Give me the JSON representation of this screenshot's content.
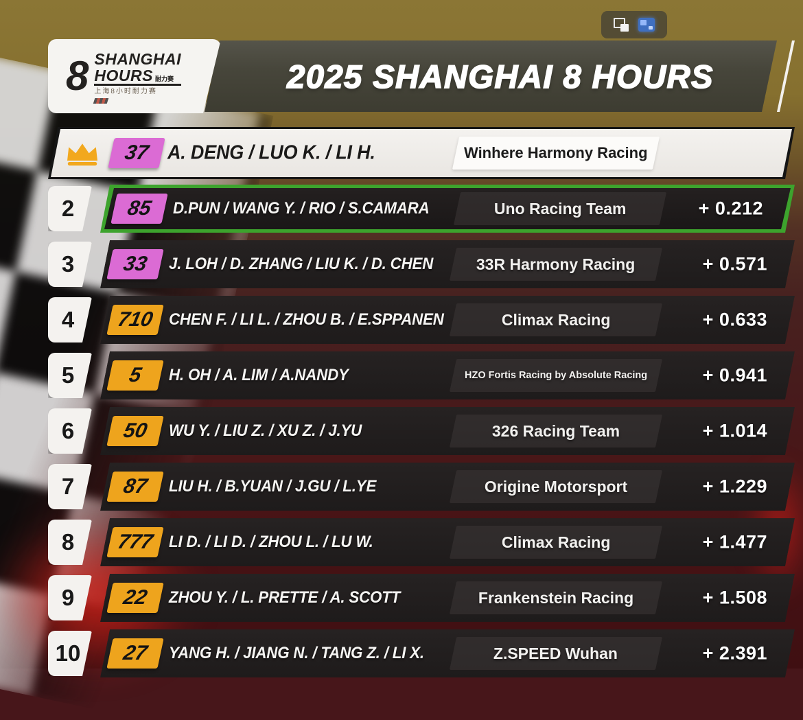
{
  "player_controls": {
    "pip_icon": "picture-in-picture",
    "cast_icon": "cast-display"
  },
  "header": {
    "logo": {
      "numeral": "8",
      "name_line1": "SHANGHAI",
      "name_line2": "HOURS",
      "inline_cjk": "耐力赛",
      "sub_cjk": "上海8小时耐力赛"
    },
    "title": "2025 SHANGHAI 8 HOURS"
  },
  "colors": {
    "highlight_green": "#3da32d",
    "badge_magenta": "#db6bd4",
    "badge_amber": "#eea41d",
    "crown_gold": "#f2a81d",
    "banner_olive": "#47463b"
  },
  "leaderboard": {
    "rows": [
      {
        "position": "1",
        "is_leader": true,
        "car_number": "37",
        "badge": "magenta",
        "drivers": "A. DENG / LUO K. / LI H.",
        "team": "Winhere Harmony Racing",
        "gap": "",
        "highlighted": false,
        "team_small": false
      },
      {
        "position": "2",
        "is_leader": false,
        "car_number": "85",
        "badge": "magenta",
        "drivers": "D.PUN / WANG Y. / RIO /  S.CAMARA",
        "team": "Uno Racing Team",
        "gap": "+ 0.212",
        "highlighted": true,
        "team_small": false
      },
      {
        "position": "3",
        "is_leader": false,
        "car_number": "33",
        "badge": "magenta",
        "drivers": "J. LOH / D. ZHANG / LIU K. / D. CHEN",
        "team": "33R Harmony Racing",
        "gap": "+ 0.571",
        "highlighted": false,
        "team_small": false
      },
      {
        "position": "4",
        "is_leader": false,
        "car_number": "710",
        "badge": "amber",
        "drivers": "CHEN F. / LI L. / ZHOU B. / E.SPPANEN",
        "team": "Climax Racing",
        "gap": "+ 0.633",
        "highlighted": false,
        "team_small": false
      },
      {
        "position": "5",
        "is_leader": false,
        "car_number": "5",
        "badge": "amber",
        "drivers": "H. OH / A. LIM / A.NANDY",
        "team": "HZO Fortis Racing by Absolute Racing",
        "gap": "+ 0.941",
        "highlighted": false,
        "team_small": true
      },
      {
        "position": "6",
        "is_leader": false,
        "car_number": "50",
        "badge": "amber",
        "drivers": "WU Y. / LIU Z. / XU Z. / J.YU",
        "team": "326 Racing Team",
        "gap": "+ 1.014",
        "highlighted": false,
        "team_small": false
      },
      {
        "position": "7",
        "is_leader": false,
        "car_number": "87",
        "badge": "amber",
        "drivers": "LIU H. / B.YUAN / J.GU /  L.YE",
        "team": "Origine Motorsport",
        "gap": "+ 1.229",
        "highlighted": false,
        "team_small": false
      },
      {
        "position": "8",
        "is_leader": false,
        "car_number": "777",
        "badge": "amber",
        "drivers": "LI D. / LI D. / ZHOU L. / LU W.",
        "team": "Climax Racing",
        "gap": "+ 1.477",
        "highlighted": false,
        "team_small": false
      },
      {
        "position": "9",
        "is_leader": false,
        "car_number": "22",
        "badge": "amber",
        "drivers": "ZHOU Y. / L. PRETTE / A. SCOTT",
        "team": "Frankenstein Racing",
        "gap": "+ 1.508",
        "highlighted": false,
        "team_small": false
      },
      {
        "position": "10",
        "is_leader": false,
        "car_number": "27",
        "badge": "amber",
        "drivers": "YANG H. / JIANG N. / TANG Z. / LI X.",
        "team": "Z.SPEED Wuhan",
        "gap": "+ 2.391",
        "highlighted": false,
        "team_small": false
      }
    ]
  }
}
